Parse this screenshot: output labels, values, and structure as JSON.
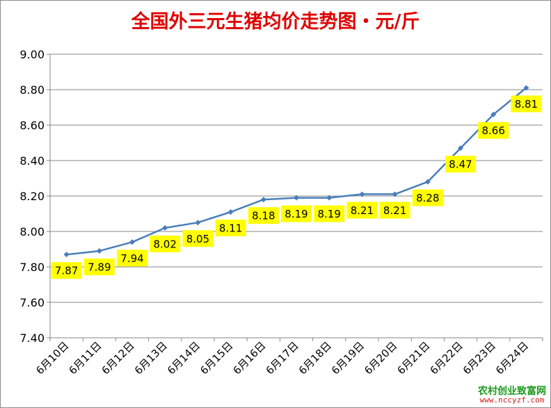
{
  "chart_data": {
    "type": "line",
    "title": "全国外三元生猪均价走势图・元/斤",
    "categories": [
      "6月10日",
      "6月11日",
      "6月12日",
      "6月13日",
      "6月14日",
      "6月15日",
      "6月16日",
      "6月17日",
      "6月18日",
      "6月19日",
      "6月20日",
      "6月21日",
      "6月22日",
      "6月23日",
      "6月24日"
    ],
    "series": [
      {
        "values": [
          7.87,
          7.89,
          7.94,
          8.02,
          8.05,
          8.11,
          8.18,
          8.19,
          8.19,
          8.21,
          8.21,
          8.28,
          8.47,
          8.66,
          8.81
        ]
      }
    ],
    "data_labels": [
      "7.87",
      "7.89",
      "7.94",
      "8.02",
      "8.05",
      "8.11",
      "8.18",
      "8.19",
      "8.19",
      "8.21",
      "8.21",
      "8.28",
      "8.47",
      "8.66",
      "8.81"
    ],
    "ylim": [
      7.4,
      9.0
    ],
    "yticks": [
      "7.40",
      "7.60",
      "7.80",
      "8.00",
      "8.20",
      "8.40",
      "8.60",
      "8.80",
      "9.00"
    ],
    "grid": true,
    "legend": "none",
    "colors": {
      "line": "#4a7ebb",
      "label_bg": "#ffff00",
      "title": "#e00000",
      "grid": "#868686"
    }
  },
  "watermark": {
    "name": "农村创业致富网",
    "url": "www.nccyzf.com"
  }
}
